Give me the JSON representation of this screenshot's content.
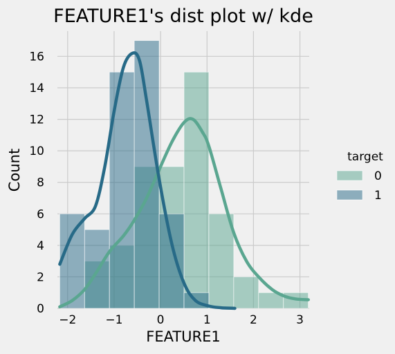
{
  "chart_data": {
    "type": "bar",
    "title": "FEATURE1's dist plot w/ kde",
    "xlabel": "FEATURE1",
    "ylabel": "Count",
    "xlim": [
      -2.22,
      3.2
    ],
    "ylim": [
      0,
      17.6
    ],
    "xticks": [
      -2,
      -1,
      0,
      1,
      2,
      3
    ],
    "yticks": [
      0,
      2,
      4,
      6,
      8,
      10,
      12,
      14,
      16
    ],
    "xtick_labels": [
      "−2",
      "−1",
      "0",
      "1",
      "2",
      "3"
    ],
    "ytick_labels": [
      "0",
      "2",
      "4",
      "6",
      "8",
      "10",
      "12",
      "14",
      "16"
    ],
    "grid": true,
    "legend": {
      "title": "target",
      "placement": "right",
      "entries": [
        "0",
        "1"
      ]
    },
    "bin_edges": [
      -2.17,
      -1.635,
      -1.1,
      -0.565,
      -0.03,
      0.505,
      1.04,
      1.575,
      2.11,
      2.645,
      3.18
    ],
    "series": [
      {
        "name": "0",
        "color": "#5aa690",
        "counts": [
          0,
          3,
          4,
          9,
          9,
          15,
          6,
          2,
          1,
          1
        ],
        "kde": [
          [
            -2.17,
            0.1
          ],
          [
            -1.9,
            0.5
          ],
          [
            -1.635,
            1.2
          ],
          [
            -1.4,
            2.2
          ],
          [
            -1.1,
            3.6
          ],
          [
            -0.8,
            4.6
          ],
          [
            -0.565,
            5.6
          ],
          [
            -0.3,
            7.0
          ],
          [
            -0.03,
            8.8
          ],
          [
            0.25,
            10.6
          ],
          [
            0.505,
            11.8
          ],
          [
            0.7,
            12.0
          ],
          [
            0.9,
            11.2
          ],
          [
            1.04,
            10.3
          ],
          [
            1.3,
            7.6
          ],
          [
            1.575,
            4.8
          ],
          [
            1.85,
            3.0
          ],
          [
            2.11,
            2.0
          ],
          [
            2.4,
            1.2
          ],
          [
            2.645,
            0.8
          ],
          [
            2.9,
            0.6
          ],
          [
            3.18,
            0.55
          ]
        ]
      },
      {
        "name": "1",
        "color": "#276a87",
        "counts": [
          6,
          5,
          15,
          17,
          6,
          1,
          0,
          0,
          0,
          0
        ],
        "kde": [
          [
            -2.17,
            2.8
          ],
          [
            -1.9,
            4.7
          ],
          [
            -1.635,
            5.7
          ],
          [
            -1.4,
            6.5
          ],
          [
            -1.2,
            9.0
          ],
          [
            -1.0,
            12.5
          ],
          [
            -0.8,
            15.3
          ],
          [
            -0.6,
            16.2
          ],
          [
            -0.45,
            15.7
          ],
          [
            -0.3,
            13.2
          ],
          [
            -0.03,
            8.2
          ],
          [
            0.25,
            4.0
          ],
          [
            0.505,
            1.6
          ],
          [
            0.75,
            0.5
          ],
          [
            1.04,
            0.15
          ],
          [
            1.3,
            0.04
          ],
          [
            1.6,
            0.0
          ]
        ]
      }
    ]
  }
}
